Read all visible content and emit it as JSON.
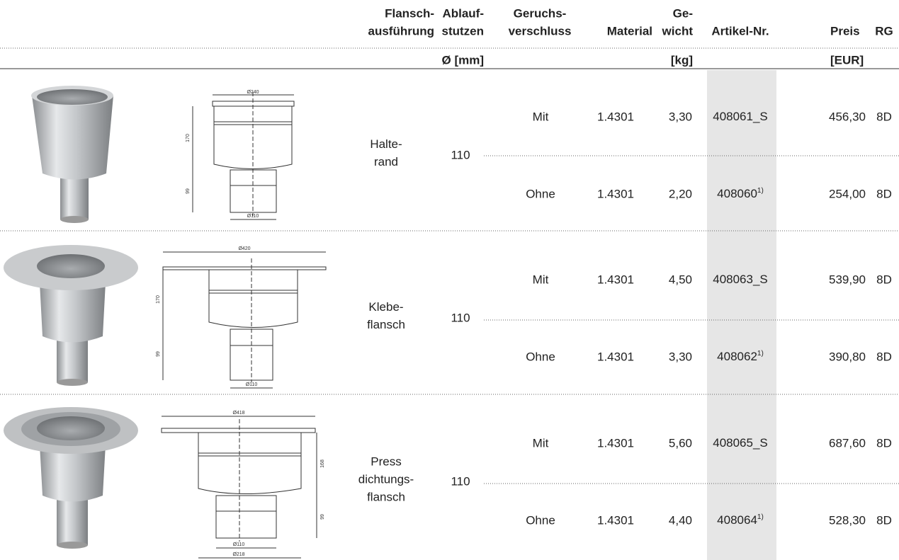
{
  "header": {
    "columns": [
      {
        "lines": [
          "Flansch-",
          "ausführung"
        ]
      },
      {
        "lines": [
          "Ablauf-",
          "stutzen"
        ],
        "unit": "Ø [mm]"
      },
      {
        "lines": [
          "Geruchs-",
          "verschluss"
        ]
      },
      {
        "lines": [
          "Material"
        ]
      },
      {
        "lines": [
          "Ge-",
          "wicht"
        ],
        "unit": "[kg]"
      },
      {
        "lines": [
          "Artikel-Nr."
        ]
      },
      {
        "lines": [
          "Preis"
        ],
        "unit": "[EUR]"
      },
      {
        "lines": [
          "RG"
        ]
      }
    ]
  },
  "groups": [
    {
      "dims": {
        "top_diameter": "Ø240",
        "upper_height": "170",
        "lower_height": "99",
        "bottom_diameter": "Ø110"
      },
      "flange": [
        "Halte-",
        "rand"
      ],
      "outlet": "110",
      "rows": [
        {
          "trap": "Mit",
          "material": "1.4301",
          "weight": "3,30",
          "article": "408061_S",
          "price": "456,30",
          "rg": "8D"
        },
        {
          "trap": "Ohne",
          "material": "1.4301",
          "weight": "2,20",
          "article": "408060",
          "article_note": "1)",
          "price": "254,00",
          "rg": "8D"
        }
      ]
    },
    {
      "dims": {
        "top_diameter": "Ø420",
        "upper_height": "170",
        "lower_height": "99",
        "bottom_diameter": "Ø110"
      },
      "flange": [
        "Klebe-",
        "flansch"
      ],
      "outlet": "110",
      "rows": [
        {
          "trap": "Mit",
          "material": "1.4301",
          "weight": "4,50",
          "article": "408063_S",
          "price": "539,90",
          "rg": "8D"
        },
        {
          "trap": "Ohne",
          "material": "1.4301",
          "weight": "3,30",
          "article": "408062",
          "article_note": "1)",
          "price": "390,80",
          "rg": "8D"
        }
      ]
    },
    {
      "dims": {
        "top_diameter": "Ø418",
        "upper_height": "168",
        "lower_height": "99",
        "bottom_diameter": "Ø110",
        "flange_inner": "Ø218"
      },
      "flange": [
        "Press",
        "dichtungs-",
        "flansch"
      ],
      "outlet": "110",
      "rows": [
        {
          "trap": "Mit",
          "material": "1.4301",
          "weight": "5,60",
          "article": "408065_S",
          "price": "687,60",
          "rg": "8D"
        },
        {
          "trap": "Ohne",
          "material": "1.4301",
          "weight": "4,40",
          "article": "408064",
          "article_note": "1)",
          "price": "528,30",
          "rg": "8D"
        }
      ]
    }
  ]
}
